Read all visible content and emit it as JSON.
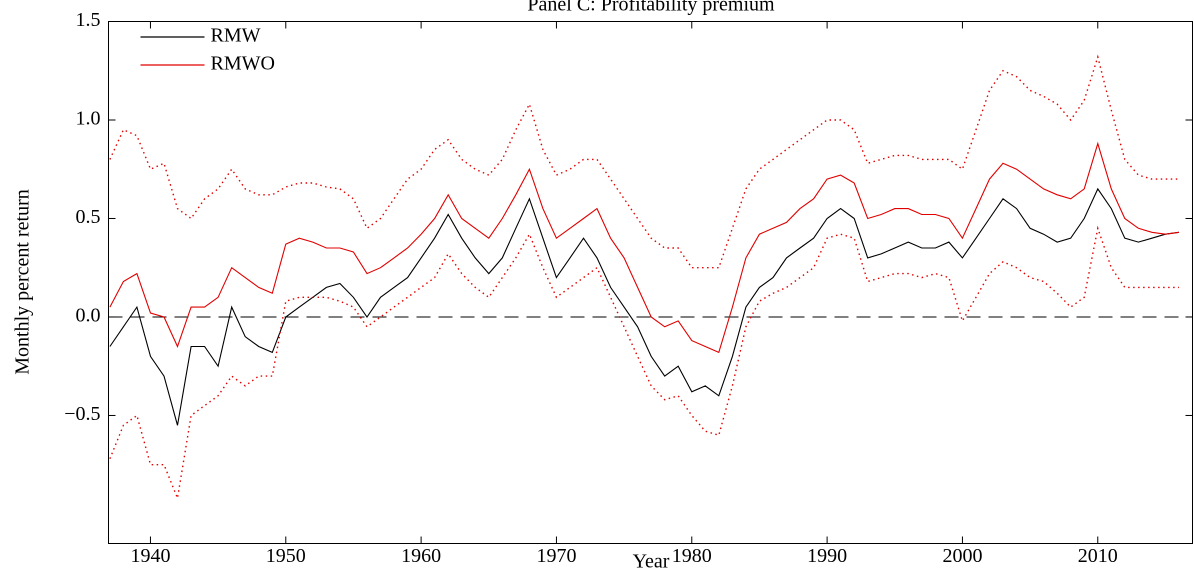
{
  "chart_data": {
    "type": "line",
    "title": "Panel C: Profitability premium",
    "xlabel": "Year",
    "ylabel": "Monthly percent return",
    "x": [
      1937,
      1938,
      1939,
      1940,
      1941,
      1942,
      1943,
      1944,
      1945,
      1946,
      1947,
      1948,
      1949,
      1950,
      1951,
      1952,
      1953,
      1954,
      1955,
      1956,
      1957,
      1958,
      1959,
      1960,
      1961,
      1962,
      1963,
      1964,
      1965,
      1966,
      1967,
      1968,
      1969,
      1970,
      1971,
      1972,
      1973,
      1974,
      1975,
      1976,
      1977,
      1978,
      1979,
      1980,
      1981,
      1982,
      1983,
      1984,
      1985,
      1986,
      1987,
      1988,
      1989,
      1990,
      1991,
      1992,
      1993,
      1994,
      1995,
      1996,
      1997,
      1998,
      1999,
      2000,
      2001,
      2002,
      2003,
      2004,
      2005,
      2006,
      2007,
      2008,
      2009,
      2010,
      2011,
      2012,
      2013,
      2014,
      2015,
      2016
    ],
    "series": [
      {
        "name": "RMW",
        "color": "#000000",
        "style": "solid",
        "values": [
          -0.15,
          -0.05,
          0.05,
          -0.2,
          -0.3,
          -0.55,
          -0.15,
          -0.15,
          -0.25,
          0.05,
          -0.1,
          -0.15,
          -0.18,
          0.0,
          0.05,
          0.1,
          0.15,
          0.17,
          0.1,
          0.0,
          0.1,
          0.15,
          0.2,
          0.3,
          0.4,
          0.52,
          0.4,
          0.3,
          0.22,
          0.3,
          0.45,
          0.6,
          0.4,
          0.2,
          0.3,
          0.4,
          0.3,
          0.15,
          0.05,
          -0.05,
          -0.2,
          -0.3,
          -0.25,
          -0.38,
          -0.35,
          -0.4,
          -0.2,
          0.05,
          0.15,
          0.2,
          0.3,
          0.35,
          0.4,
          0.5,
          0.55,
          0.5,
          0.3,
          0.32,
          0.35,
          0.38,
          0.35,
          0.35,
          0.38,
          0.3,
          0.4,
          0.5,
          0.6,
          0.55,
          0.45,
          0.42,
          0.38,
          0.4,
          0.5,
          0.65,
          0.55,
          0.4,
          0.38,
          0.4,
          0.42,
          0.43
        ]
      },
      {
        "name": "RMWO",
        "color": "#e00000",
        "style": "solid",
        "values": [
          0.05,
          0.18,
          0.22,
          0.02,
          0.0,
          -0.15,
          0.05,
          0.05,
          0.1,
          0.25,
          0.2,
          0.15,
          0.12,
          0.37,
          0.4,
          0.38,
          0.35,
          0.35,
          0.33,
          0.22,
          0.25,
          0.3,
          0.35,
          0.42,
          0.5,
          0.62,
          0.5,
          0.45,
          0.4,
          0.5,
          0.62,
          0.75,
          0.55,
          0.4,
          0.45,
          0.5,
          0.55,
          0.4,
          0.3,
          0.15,
          0.0,
          -0.05,
          -0.02,
          -0.12,
          -0.15,
          -0.18,
          0.05,
          0.3,
          0.42,
          0.45,
          0.48,
          0.55,
          0.6,
          0.7,
          0.72,
          0.68,
          0.5,
          0.52,
          0.55,
          0.55,
          0.52,
          0.52,
          0.5,
          0.4,
          0.55,
          0.7,
          0.78,
          0.75,
          0.7,
          0.65,
          0.62,
          0.6,
          0.65,
          0.88,
          0.65,
          0.5,
          0.45,
          0.43,
          0.42,
          0.43
        ]
      },
      {
        "color": "#e00000",
        "style": "dotted",
        "values": [
          0.8,
          0.95,
          0.92,
          0.75,
          0.78,
          0.55,
          0.5,
          0.6,
          0.65,
          0.75,
          0.65,
          0.62,
          0.62,
          0.66,
          0.68,
          0.68,
          0.66,
          0.65,
          0.6,
          0.45,
          0.5,
          0.6,
          0.7,
          0.75,
          0.85,
          0.9,
          0.8,
          0.75,
          0.72,
          0.8,
          0.95,
          1.08,
          0.85,
          0.72,
          0.75,
          0.8,
          0.8,
          0.7,
          0.6,
          0.5,
          0.4,
          0.35,
          0.35,
          0.25,
          0.25,
          0.25,
          0.45,
          0.65,
          0.75,
          0.8,
          0.85,
          0.9,
          0.95,
          1.0,
          1.0,
          0.95,
          0.78,
          0.8,
          0.82,
          0.82,
          0.8,
          0.8,
          0.8,
          0.75,
          0.95,
          1.15,
          1.25,
          1.22,
          1.15,
          1.12,
          1.08,
          1.0,
          1.1,
          1.32,
          1.05,
          0.8,
          0.72,
          0.7,
          0.7,
          0.7
        ]
      },
      {
        "color": "#e00000",
        "style": "dotted",
        "values": [
          -0.72,
          -0.55,
          -0.5,
          -0.75,
          -0.75,
          -0.92,
          -0.5,
          -0.45,
          -0.4,
          -0.3,
          -0.35,
          -0.3,
          -0.3,
          0.08,
          0.1,
          0.1,
          0.1,
          0.08,
          0.05,
          -0.05,
          0.0,
          0.05,
          0.1,
          0.15,
          0.2,
          0.32,
          0.22,
          0.15,
          0.1,
          0.2,
          0.3,
          0.42,
          0.25,
          0.1,
          0.15,
          0.2,
          0.25,
          0.1,
          -0.05,
          -0.2,
          -0.35,
          -0.42,
          -0.4,
          -0.5,
          -0.58,
          -0.6,
          -0.35,
          -0.05,
          0.08,
          0.12,
          0.15,
          0.2,
          0.25,
          0.4,
          0.42,
          0.4,
          0.18,
          0.2,
          0.22,
          0.22,
          0.2,
          0.22,
          0.2,
          -0.02,
          0.1,
          0.22,
          0.28,
          0.25,
          0.2,
          0.18,
          0.12,
          0.05,
          0.1,
          0.45,
          0.25,
          0.15,
          0.15,
          0.15,
          0.15,
          0.15
        ]
      }
    ],
    "hline": 0,
    "xlim": [
      1936.9,
      2017
    ],
    "xticks": [
      1940,
      1950,
      1960,
      1970,
      1980,
      1990,
      2000,
      2010
    ],
    "ylim": [
      -1.15,
      1.5
    ],
    "yticks": [
      {
        "value": -0.5,
        "label": "−0.5"
      },
      {
        "value": 0,
        "label": "0.0"
      },
      0.5,
      {
        "value": 1,
        "label": "1.0"
      },
      1.5
    ],
    "legend": "upper left",
    "grid": false
  }
}
